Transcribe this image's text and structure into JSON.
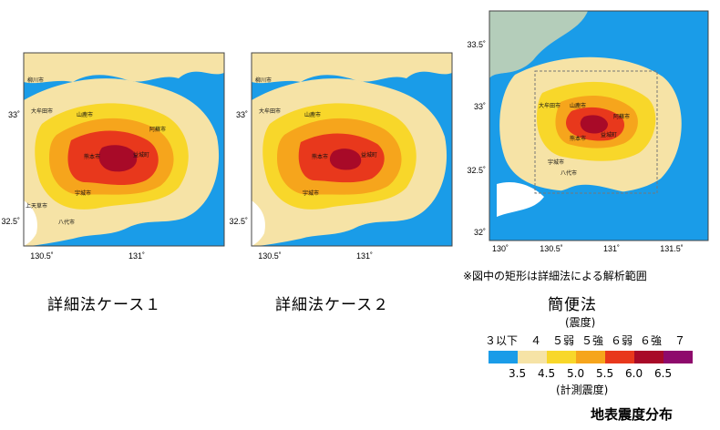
{
  "maps": [
    {
      "caption": "詳細法ケース１",
      "y_ticks": [
        "33˚",
        "32.5˚"
      ],
      "x_ticks": [
        "130.5˚",
        "131˚"
      ],
      "place_labels": [
        "大牟田市",
        "山鹿市",
        "阿蘇市",
        "熊本市",
        "益城町",
        "宇城市",
        "八代市",
        "上天草市",
        "柳川市"
      ]
    },
    {
      "caption": "詳細法ケース２",
      "y_ticks": [
        "33˚",
        "32.5˚"
      ],
      "x_ticks": [
        "130.5˚",
        "131˚"
      ],
      "place_labels": [
        "大牟田市",
        "山鹿市",
        "熊本市",
        "益城町",
        "宇城市",
        "柳川市"
      ]
    },
    {
      "caption": "簡便法",
      "y_ticks": [
        "33.5˚",
        "33˚",
        "32.5˚",
        "32˚"
      ],
      "x_ticks": [
        "130˚",
        "130.5˚",
        "131˚",
        "131.5˚"
      ],
      "place_labels": [
        "大牟田市",
        "山鹿市",
        "阿蘇市",
        "熊本市",
        "益城町",
        "宇城市",
        "八代市"
      ]
    }
  ],
  "note": "※図中の矩形は詳細法による解析範囲",
  "legend": {
    "title_top": "(震度)",
    "intensity_classes": [
      "３以下",
      "４",
      "５弱",
      "５強",
      "６弱",
      "６強",
      "７"
    ],
    "class_colors": [
      "#1a9ce8",
      "#f6e3a6",
      "#f8d72a",
      "#f6a51c",
      "#e8381c",
      "#a80a28",
      "#8e0a6c"
    ],
    "boundaries": [
      "3.5",
      "4.5",
      "5.0",
      "5.5",
      "6.0",
      "6.5"
    ],
    "title_bottom": "(計測震度)"
  },
  "footer": "地表震度分布"
}
